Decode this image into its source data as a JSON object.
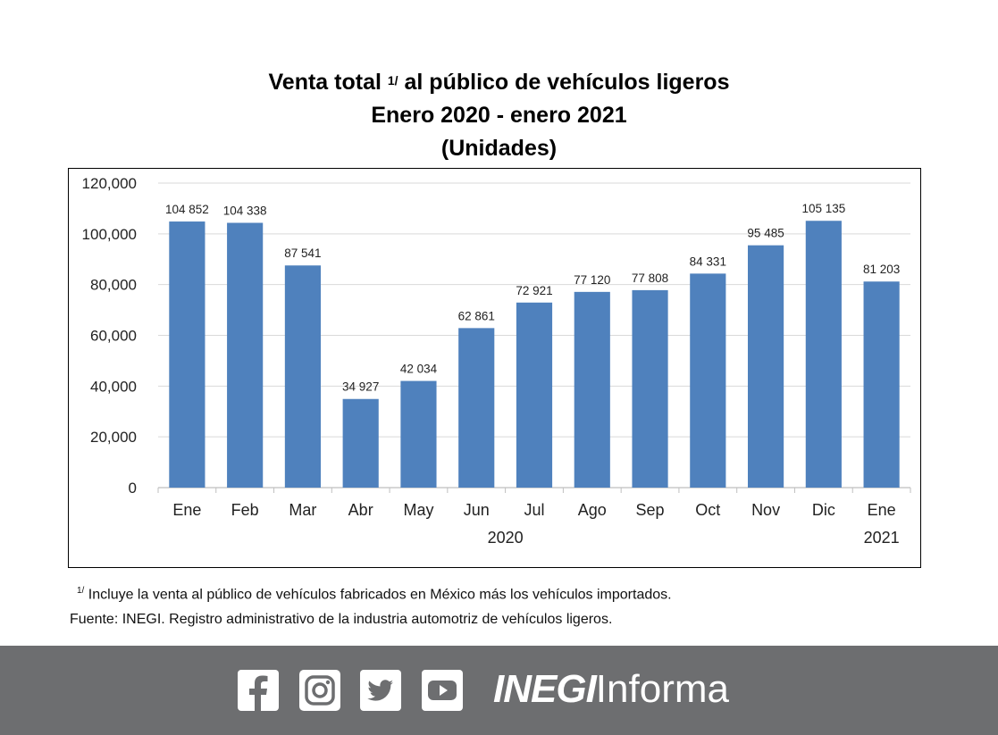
{
  "title": {
    "line1_pre": "Venta total ",
    "line1_sup": "1/",
    "line1_post": " al público de vehículos ligeros",
    "line2": "Enero 2020 - enero 2021",
    "line3": "(Unidades)"
  },
  "chart_data": {
    "type": "bar",
    "categories": [
      "Ene",
      "Feb",
      "Mar",
      "Abr",
      "May",
      "Jun",
      "Jul",
      "Ago",
      "Sep",
      "Oct",
      "Nov",
      "Dic",
      "Ene"
    ],
    "values": [
      104852,
      104338,
      87541,
      34927,
      42034,
      62861,
      72921,
      77120,
      77808,
      84331,
      95485,
      105135,
      81203
    ],
    "data_labels": [
      "104 852",
      "104 338",
      "87 541",
      "34 927",
      "42 034",
      "62 861",
      "72 921",
      "77 120",
      "77 808",
      "84 331",
      "95 485",
      "105 135",
      "81 203"
    ],
    "year_labels": [
      {
        "text": "2020",
        "category_span": [
          0,
          11
        ]
      },
      {
        "text": "2021",
        "category_span": [
          12,
          12
        ]
      }
    ],
    "yticks": [
      0,
      20000,
      40000,
      60000,
      80000,
      100000,
      120000
    ],
    "ytick_labels": [
      "0",
      "20,000",
      "40,000",
      "60,000",
      "80,000",
      "100,000",
      "120,000"
    ],
    "ylim": [
      0,
      120000
    ],
    "grid": true,
    "bar_color": "#4f81bd",
    "grid_color": "#d9d9d9"
  },
  "footnotes": {
    "note_sup": "1/",
    "note_text": " Incluye la venta al público de vehículos fabricados en México más los vehículos importados.",
    "source": "Fuente: INEGI. Registro administrativo de la industria automotriz de vehículos ligeros."
  },
  "footer": {
    "background": "#6d6e70",
    "icons": [
      "facebook-icon",
      "instagram-icon",
      "twitter-icon",
      "youtube-icon"
    ],
    "brand_strong": "INEGI",
    "brand_light": "Informa"
  }
}
